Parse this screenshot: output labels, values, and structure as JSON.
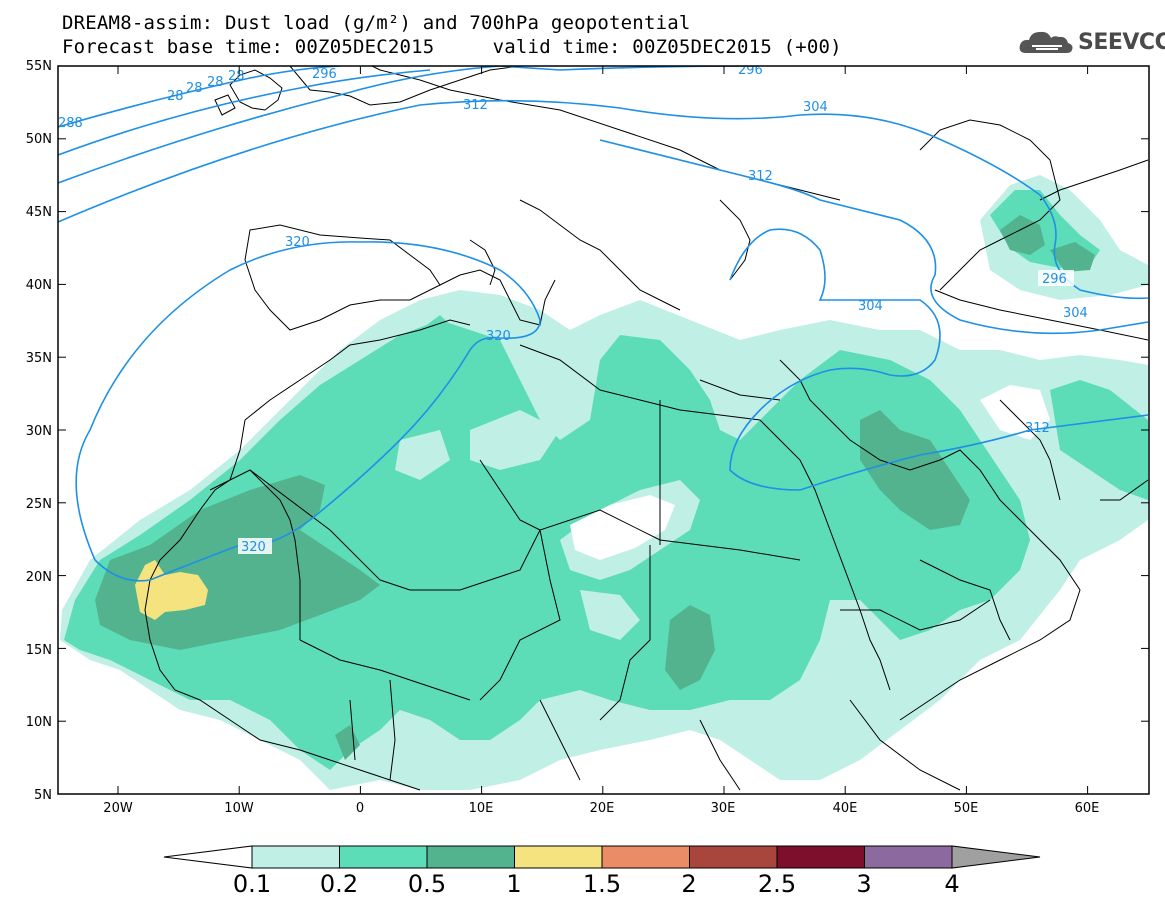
{
  "header": {
    "title_line1": "DREAM8-assim: Dust load (g/m²) and 700hPa geopotential",
    "title_line2": "Forecast base time: 00Z05DEC2015     valid time: 00Z05DEC2015 (+00)"
  },
  "logo": {
    "text": "SEEVCCC",
    "icon": "cloud-icon"
  },
  "map": {
    "lat_labels": [
      "55N",
      "50N",
      "45N",
      "40N",
      "35N",
      "30N",
      "25N",
      "20N",
      "15N",
      "10N",
      "5N"
    ],
    "lon_labels": [
      "20W",
      "10W",
      "0",
      "10E",
      "20E",
      "30E",
      "40E",
      "50E",
      "60E"
    ],
    "contour_labels": [
      "28",
      "28",
      "28",
      "28",
      "288",
      "296",
      "296",
      "312",
      "304",
      "312",
      "320",
      "320",
      "304",
      "296",
      "304",
      "312",
      "320"
    ],
    "colors": {
      "ocean": "#ffffff",
      "coast": "#000000",
      "contour": "#1e90e6",
      "level_0_1": "#c0efe6",
      "level_0_2": "#5ddcb8",
      "level_0_5": "#54b38f",
      "level_1": "#f4e37e"
    }
  },
  "colorbar": {
    "labels": [
      "0.1",
      "0.2",
      "0.5",
      "1",
      "1.5",
      "2",
      "2.5",
      "3",
      "4"
    ],
    "colors": [
      "#c0efe6",
      "#5ddcb8",
      "#54b38f",
      "#f4e37e",
      "#ea8c66",
      "#a8463e",
      "#7d0f2c",
      "#8c6aa0"
    ],
    "under_color": "#ffffff",
    "over_color": "#a0a0a0"
  }
}
